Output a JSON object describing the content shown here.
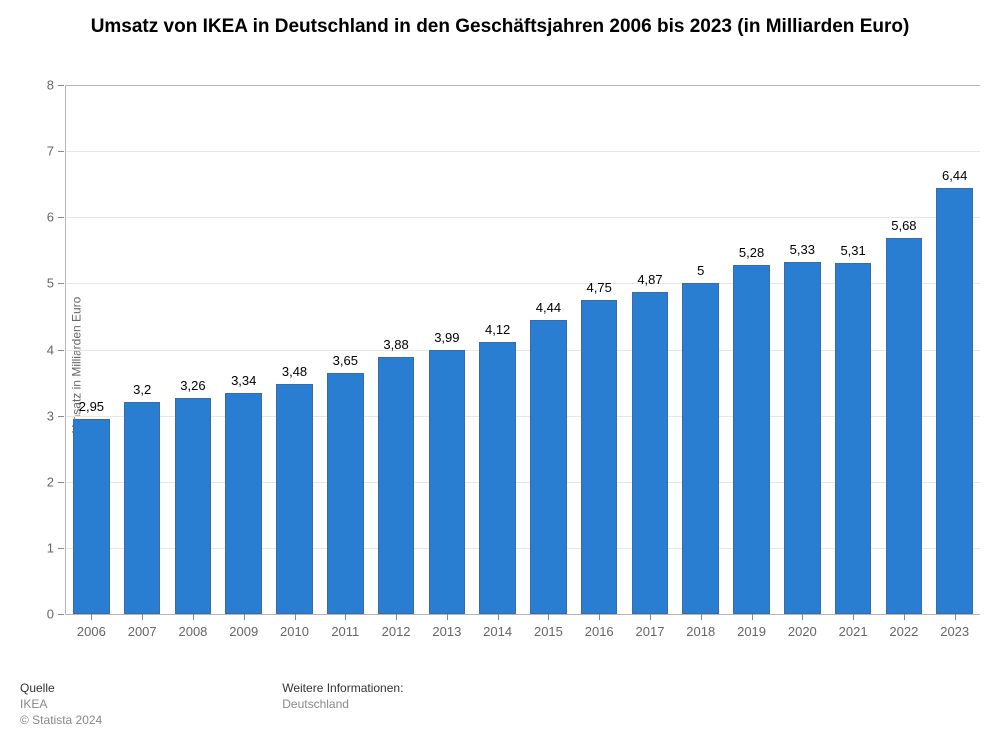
{
  "title": "Umsatz von IKEA in Deutschland in den Geschäftsjahren 2006 bis 2023 (in Milliarden Euro)",
  "chart": {
    "type": "bar",
    "ylabel": "Umsatz in Milliarden Euro",
    "ylim": [
      0,
      8
    ],
    "ytick_step": 1,
    "yticks": [
      "0",
      "1",
      "2",
      "3",
      "4",
      "5",
      "6",
      "7",
      "8"
    ],
    "categories": [
      "2006",
      "2007",
      "2008",
      "2009",
      "2010",
      "2011",
      "2012",
      "2013",
      "2014",
      "2015",
      "2016",
      "2017",
      "2018",
      "2019",
      "2020",
      "2021",
      "2022",
      "2023"
    ],
    "values": [
      2.95,
      3.2,
      3.26,
      3.34,
      3.48,
      3.65,
      3.88,
      3.99,
      4.12,
      4.44,
      4.75,
      4.87,
      5,
      5.28,
      5.33,
      5.31,
      5.68,
      6.44
    ],
    "value_labels": [
      "2,95",
      "3,2",
      "3,26",
      "3,34",
      "3,48",
      "3,65",
      "3,88",
      "3,99",
      "4,12",
      "4,44",
      "4,75",
      "4,87",
      "5",
      "5,28",
      "5,33",
      "5,31",
      "5,68",
      "6,44"
    ],
    "bar_color": "#2a7ed2",
    "bar_border_color": "#3a6aa8",
    "background_color": "#ffffff",
    "grid_color": "#e6e6e6",
    "axis_color": "#b5b5b5",
    "tick_color": "#888888",
    "bar_width": 0.72,
    "title_fontsize": 19,
    "label_fontsize": 12,
    "tick_fontsize": 13,
    "value_fontsize": 13,
    "ylabel_fontsize": 12
  },
  "footer": {
    "source_hdr": "Quelle",
    "source_line1": "IKEA",
    "source_line2": "© Statista 2024",
    "info_hdr": "Weitere Informationen:",
    "info_line1": "Deutschland",
    "footer_fontsize": 12
  }
}
